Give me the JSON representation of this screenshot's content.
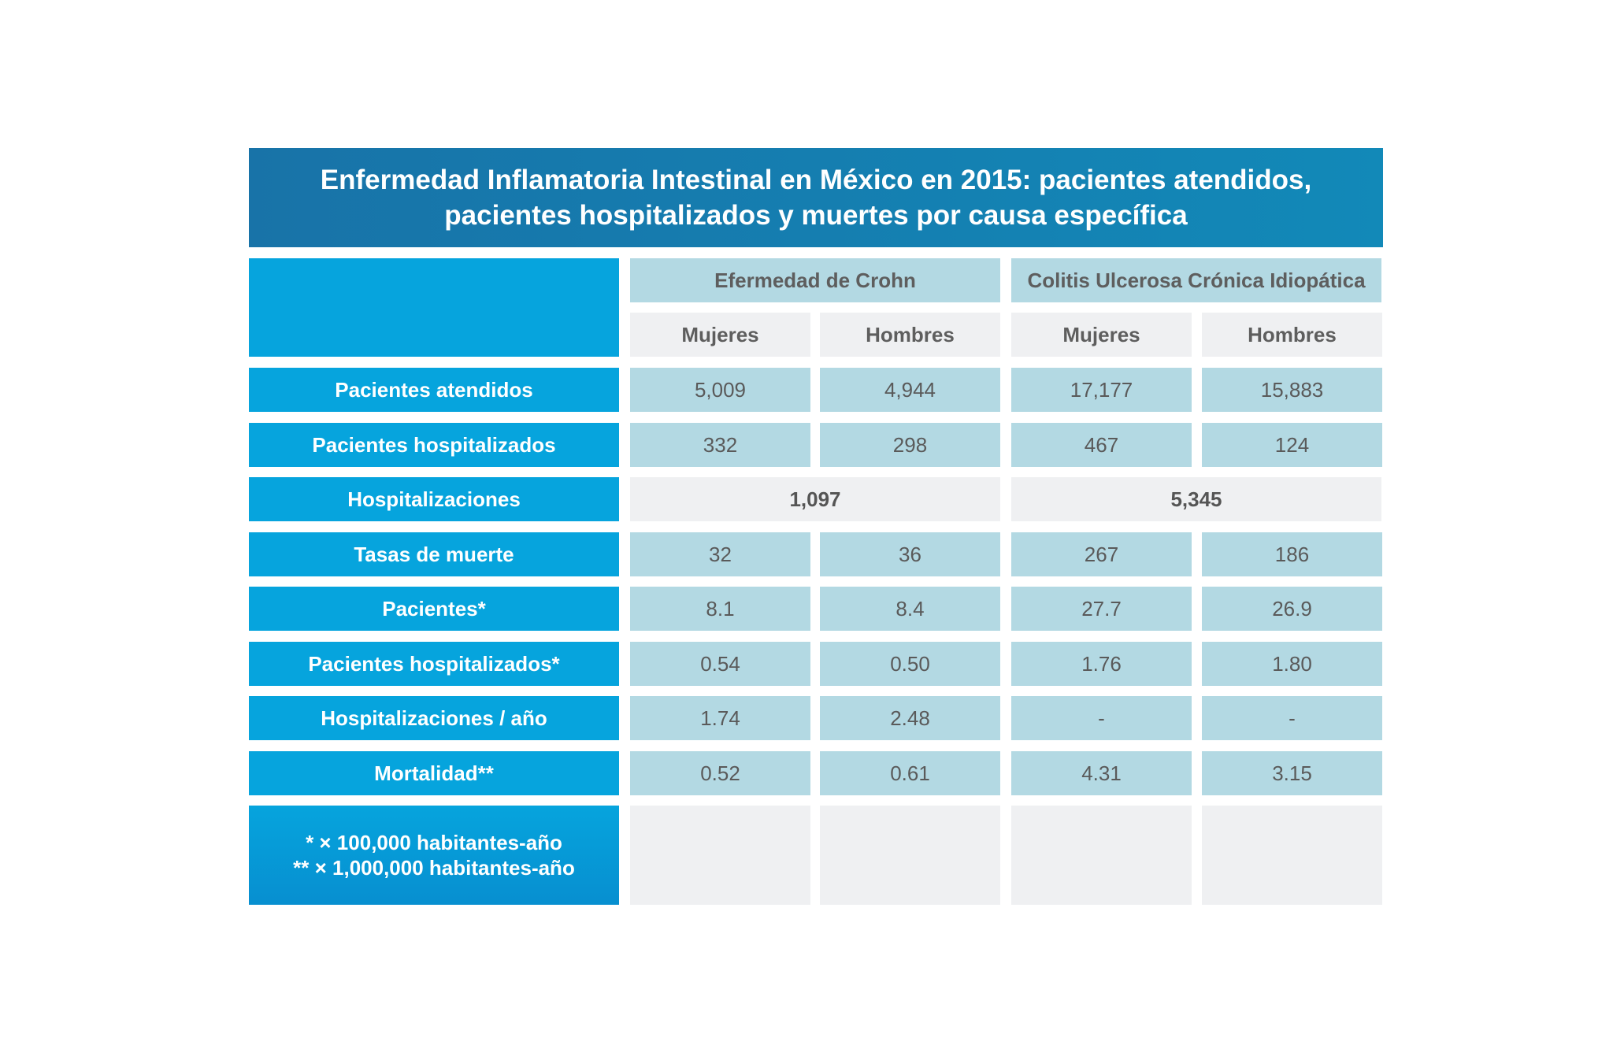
{
  "title_lines": [
    "Enfermedad Inflamatoria Intestinal en México en 2015: pacientes atendidos,",
    "pacientes hospitalizados y muertes por causa específica"
  ],
  "groups": [
    "Efermedad de Crohn",
    "Colitis Ulcerosa Crónica Idiopática"
  ],
  "subgroups": [
    "Mujeres",
    "Hombres",
    "Mujeres",
    "Hombres"
  ],
  "rows": [
    {
      "label": "Pacientes atendidos",
      "values": [
        "5,009",
        "4,944",
        "17,177",
        "15,883"
      ]
    },
    {
      "label": "Pacientes hospitalizados",
      "values": [
        "332",
        "298",
        "467",
        "124"
      ]
    },
    {
      "label": "Hospitalizaciones",
      "merged": [
        "1,097",
        "5,345"
      ]
    },
    {
      "label": "Tasas de muerte",
      "values": [
        "32",
        "36",
        "267",
        "186"
      ]
    },
    {
      "label": "Pacientes*",
      "values": [
        "8.1",
        "8.4",
        "27.7",
        "26.9"
      ]
    },
    {
      "label": "Pacientes hospitalizados*",
      "values": [
        "0.54",
        "0.50",
        "1.76",
        "1.80"
      ]
    },
    {
      "label": "Hospitalizaciones / año",
      "values": [
        "1.74",
        "2.48",
        "-",
        "-"
      ]
    },
    {
      "label": "Mortalidad**",
      "values": [
        "0.52",
        "0.61",
        "4.31",
        "3.15"
      ]
    }
  ],
  "footnotes": [
    "* × 100,000 habitantes-año",
    "** × 1,000,000 habitantes-año"
  ],
  "colors": {
    "title_bg": "#1a7fb2",
    "row_header_bg": "#06a4dd",
    "value_bg": "#b3d9e3",
    "light_bg": "#eff0f2"
  },
  "chart_data": {
    "type": "table",
    "columns": [
      "Efermedad de Crohn - Mujeres",
      "Efermedad de Crohn - Hombres",
      "Colitis Ulcerosa Crónica Idiopática - Mujeres",
      "Colitis Ulcerosa Crónica Idiopática - Hombres"
    ],
    "rows": [
      {
        "label": "Pacientes atendidos",
        "values": [
          5009,
          4944,
          17177,
          15883
        ]
      },
      {
        "label": "Pacientes hospitalizados",
        "values": [
          332,
          298,
          467,
          124
        ]
      },
      {
        "label": "Hospitalizaciones",
        "values": [
          1097,
          1097,
          5345,
          5345
        ]
      },
      {
        "label": "Tasas de muerte",
        "values": [
          32,
          36,
          267,
          186
        ]
      },
      {
        "label": "Pacientes*",
        "values": [
          8.1,
          8.4,
          27.7,
          26.9
        ]
      },
      {
        "label": "Pacientes hospitalizados*",
        "values": [
          0.54,
          0.5,
          1.76,
          1.8
        ]
      },
      {
        "label": "Hospitalizaciones / año",
        "values": [
          1.74,
          2.48,
          null,
          null
        ]
      },
      {
        "label": "Mortalidad**",
        "values": [
          0.52,
          0.61,
          4.31,
          3.15
        ]
      }
    ]
  }
}
